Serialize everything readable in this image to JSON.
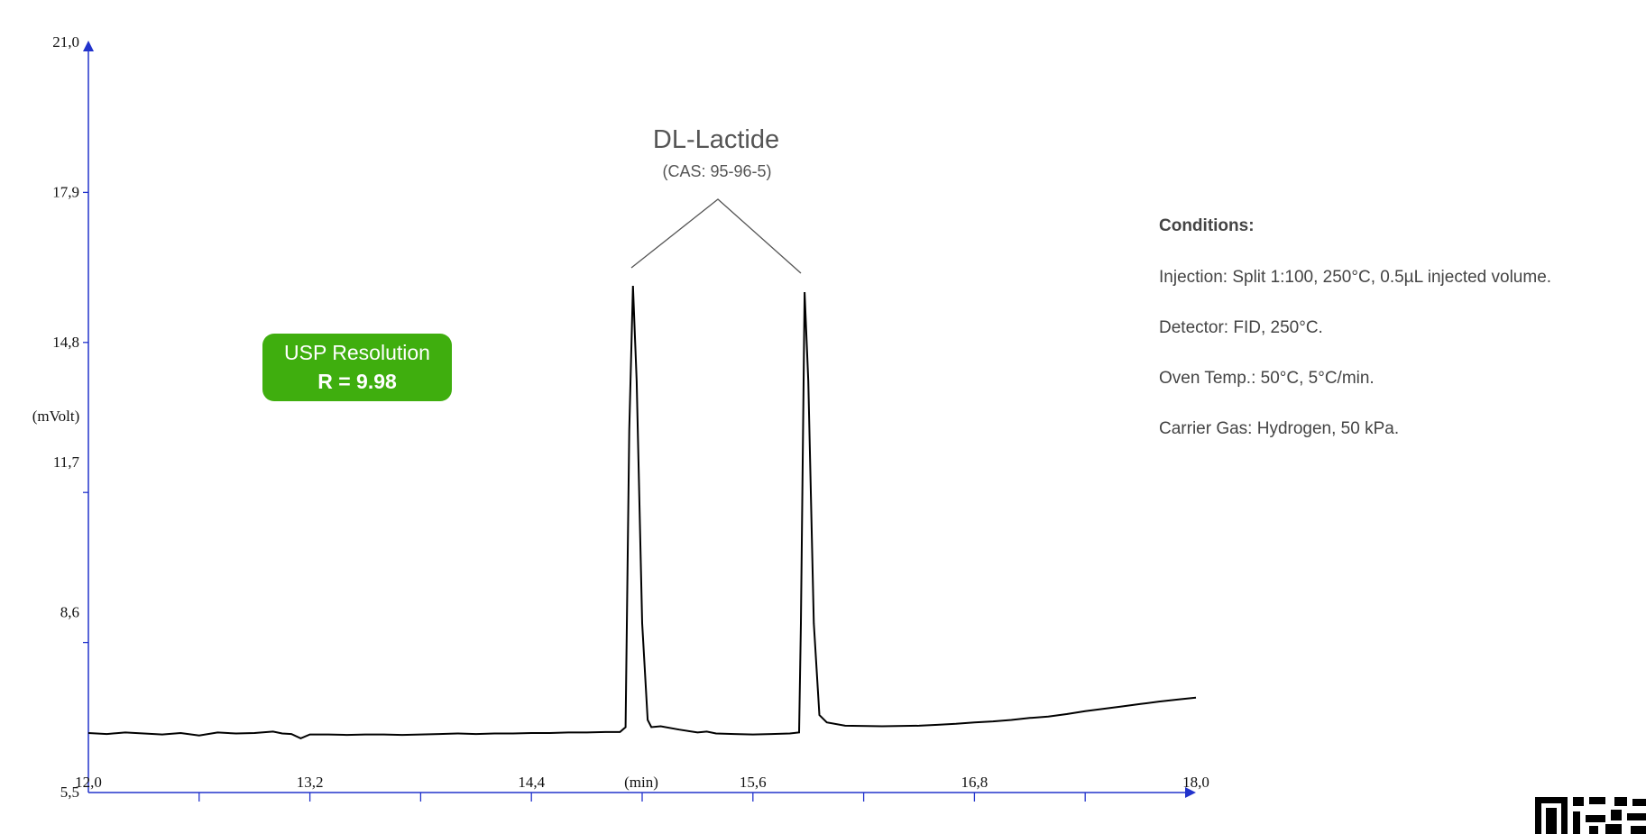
{
  "chart_data": {
    "type": "line",
    "xlabel": "(min)",
    "ylabel": "(mVolt)",
    "xlim": [
      12.0,
      18.0
    ],
    "ylim": [
      5.5,
      21.0
    ],
    "x_ticks": [
      "12,0",
      "13,2",
      "14,4",
      "15,6",
      "16,8",
      "18,0"
    ],
    "x_tick_values": [
      12.0,
      13.2,
      14.4,
      15.6,
      16.8,
      18.0
    ],
    "y_ticks": [
      "5,5",
      "8,6",
      "11,7",
      "14,8",
      "17,9",
      "21,0"
    ],
    "y_tick_values": [
      5.5,
      8.6,
      11.7,
      14.8,
      17.9,
      21.0
    ],
    "grid": false,
    "axis_color": "#2233cc",
    "line_color": "#000000",
    "series": [
      {
        "points": [
          [
            12.0,
            6.73
          ],
          [
            12.1,
            6.71
          ],
          [
            12.2,
            6.74
          ],
          [
            12.3,
            6.72
          ],
          [
            12.4,
            6.7
          ],
          [
            12.5,
            6.73
          ],
          [
            12.6,
            6.68
          ],
          [
            12.7,
            6.74
          ],
          [
            12.8,
            6.72
          ],
          [
            12.9,
            6.73
          ],
          [
            13.0,
            6.76
          ],
          [
            13.05,
            6.72
          ],
          [
            13.1,
            6.71
          ],
          [
            13.15,
            6.62
          ],
          [
            13.2,
            6.7
          ],
          [
            13.3,
            6.7
          ],
          [
            13.4,
            6.69
          ],
          [
            13.5,
            6.7
          ],
          [
            13.6,
            6.7
          ],
          [
            13.7,
            6.69
          ],
          [
            13.8,
            6.7
          ],
          [
            13.9,
            6.71
          ],
          [
            14.0,
            6.72
          ],
          [
            14.1,
            6.71
          ],
          [
            14.2,
            6.72
          ],
          [
            14.3,
            6.72
          ],
          [
            14.4,
            6.73
          ],
          [
            14.5,
            6.73
          ],
          [
            14.6,
            6.74
          ],
          [
            14.7,
            6.74
          ],
          [
            14.8,
            6.75
          ],
          [
            14.88,
            6.75
          ],
          [
            14.91,
            6.85
          ],
          [
            14.93,
            13.0
          ],
          [
            14.95,
            15.97
          ],
          [
            14.97,
            14.0
          ],
          [
            15.0,
            9.0
          ],
          [
            15.03,
            7.0
          ],
          [
            15.05,
            6.85
          ],
          [
            15.1,
            6.87
          ],
          [
            15.2,
            6.8
          ],
          [
            15.3,
            6.74
          ],
          [
            15.35,
            6.76
          ],
          [
            15.4,
            6.72
          ],
          [
            15.5,
            6.71
          ],
          [
            15.6,
            6.7
          ],
          [
            15.7,
            6.71
          ],
          [
            15.8,
            6.72
          ],
          [
            15.85,
            6.74
          ],
          [
            15.86,
            9.0
          ],
          [
            15.88,
            15.84
          ],
          [
            15.9,
            14.0
          ],
          [
            15.93,
            9.0
          ],
          [
            15.96,
            7.1
          ],
          [
            16.0,
            6.95
          ],
          [
            16.1,
            6.88
          ],
          [
            16.3,
            6.87
          ],
          [
            16.5,
            6.88
          ],
          [
            16.6,
            6.9
          ],
          [
            16.7,
            6.92
          ],
          [
            16.8,
            6.95
          ],
          [
            16.9,
            6.97
          ],
          [
            17.0,
            7.0
          ],
          [
            17.1,
            7.04
          ],
          [
            17.2,
            7.07
          ],
          [
            17.3,
            7.12
          ],
          [
            17.4,
            7.18
          ],
          [
            17.5,
            7.23
          ],
          [
            17.6,
            7.28
          ],
          [
            17.7,
            7.33
          ],
          [
            17.8,
            7.38
          ],
          [
            17.9,
            7.42
          ],
          [
            18.0,
            7.46
          ]
        ]
      }
    ],
    "annotations": {
      "compound": "DL-Lactide",
      "cas": "(CAS: 95-96-5)",
      "resolution_title": "USP Resolution",
      "resolution_value": "R = 9.98",
      "resolution_color": "#3fae0e"
    }
  },
  "conditions": {
    "title": "Conditions:",
    "injection": "Injection: Split 1:100, 250°C, 0.5µL injected volume.",
    "detector": "Detector: FID, 250°C.",
    "oven": "Oven Temp.: 50°C, 5°C/min.",
    "carrier": "Carrier Gas: Hydrogen, 50 kPa."
  }
}
